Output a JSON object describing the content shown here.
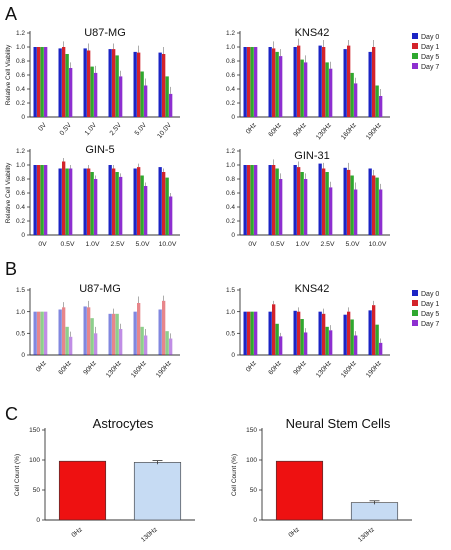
{
  "panel_labels": [
    "A",
    "B",
    "C"
  ],
  "legend": [
    {
      "label": "Day 0",
      "color": "#1c24c4"
    },
    {
      "label": "Day 1",
      "color": "#d3232b"
    },
    {
      "label": "Day 5",
      "color": "#2fa82f"
    },
    {
      "label": "Day 7",
      "color": "#8d2fd0"
    }
  ],
  "chart_data": [
    {
      "type": "bar",
      "title": "U87-MG",
      "ylabel": "Relative Cell Viability",
      "ylim": [
        0,
        1.2
      ],
      "yticks": [
        "0",
        "0.2",
        "0.4",
        "0.6",
        "0.8",
        "1.0",
        "1.2"
      ],
      "categories": [
        "0V",
        "0.5V",
        "1.0V",
        "2.5V",
        "5.0V",
        "10.0V"
      ],
      "series": [
        {
          "name": "Day 0",
          "values": [
            1.0,
            0.98,
            0.98,
            0.97,
            0.93,
            0.92
          ]
        },
        {
          "name": "Day 1",
          "values": [
            1.0,
            1.0,
            0.95,
            0.97,
            0.92,
            0.9
          ]
        },
        {
          "name": "Day 5",
          "values": [
            1.0,
            0.9,
            0.72,
            0.88,
            0.65,
            0.58
          ]
        },
        {
          "name": "Day 7",
          "values": [
            1.0,
            0.7,
            0.63,
            0.58,
            0.45,
            0.33
          ]
        }
      ],
      "errors": [
        0,
        0.08,
        0.1,
        0.08,
        0.1,
        0.1
      ]
    },
    {
      "type": "bar",
      "title": "KNS42",
      "ylim": [
        0,
        1.2
      ],
      "yticks": [
        "0",
        "0.2",
        "0.4",
        "0.6",
        "0.8",
        "1.0",
        "1.2"
      ],
      "categories": [
        "0Hz",
        "60Hz",
        "90Hz",
        "130Hz",
        "160Hz",
        "190Hz"
      ],
      "series": [
        {
          "name": "Day 0",
          "values": [
            1.0,
            1.0,
            1.0,
            1.02,
            0.97,
            0.93
          ]
        },
        {
          "name": "Day 1",
          "values": [
            1.0,
            0.98,
            1.02,
            1.0,
            1.02,
            1.0
          ]
        },
        {
          "name": "Day 5",
          "values": [
            1.0,
            0.93,
            0.82,
            0.78,
            0.63,
            0.45
          ]
        },
        {
          "name": "Day 7",
          "values": [
            1.0,
            0.87,
            0.78,
            0.69,
            0.48,
            0.3
          ]
        }
      ],
      "errors": [
        0,
        0.1,
        0.1,
        0.1,
        0.08,
        0.1
      ]
    },
    {
      "type": "bar",
      "title": "GIN-5",
      "ylabel": "Relative Cell Viability",
      "ylim": [
        0,
        1.2
      ],
      "yticks": [
        "0",
        "0.2",
        "0.4",
        "0.6",
        "0.8",
        "1.0",
        "1.2"
      ],
      "categories": [
        "0V",
        "0.5V",
        "1.0V",
        "2.5V",
        "5.0V",
        "10.0V"
      ],
      "series": [
        {
          "name": "Day 0",
          "values": [
            1.0,
            0.95,
            0.95,
            1.0,
            0.95,
            0.97
          ]
        },
        {
          "name": "Day 1",
          "values": [
            1.0,
            1.05,
            0.95,
            0.95,
            0.97,
            0.9
          ]
        },
        {
          "name": "Day 5",
          "values": [
            1.0,
            0.95,
            0.9,
            0.9,
            0.85,
            0.82
          ]
        },
        {
          "name": "Day 7",
          "values": [
            1.0,
            0.95,
            0.8,
            0.83,
            0.7,
            0.55
          ]
        }
      ],
      "errors": [
        0,
        0.05,
        0.05,
        0.05,
        0.05,
        0.05
      ]
    },
    {
      "type": "bar",
      "title": "GIN-31",
      "ylim": [
        0,
        1.2
      ],
      "yticks": [
        "0",
        "0.2",
        "0.4",
        "0.6",
        "0.8",
        "1.0",
        "1.2"
      ],
      "categories": [
        "0V",
        "0.5V",
        "1.0V",
        "2.5V",
        "5.0V",
        "10.0V"
      ],
      "series": [
        {
          "name": "Day 0",
          "values": [
            1.0,
            1.0,
            1.0,
            1.02,
            0.96,
            0.95
          ]
        },
        {
          "name": "Day 1",
          "values": [
            1.0,
            1.0,
            0.97,
            0.95,
            0.93,
            0.85
          ]
        },
        {
          "name": "Day 5",
          "values": [
            1.0,
            0.95,
            0.9,
            0.9,
            0.85,
            0.82
          ]
        },
        {
          "name": "Day 7",
          "values": [
            1.0,
            0.8,
            0.8,
            0.68,
            0.65,
            0.65
          ]
        }
      ],
      "errors": [
        0,
        0.08,
        0.08,
        0.08,
        0.1,
        0.08
      ]
    },
    {
      "type": "bar",
      "title": "U87-MG",
      "ylim": [
        0,
        1.5
      ],
      "yticks": [
        "0",
        "0.5",
        "1.0",
        "1.5"
      ],
      "categories": [
        "0Hz",
        "60Hz",
        "90Hz",
        "130Hz",
        "160Hz",
        "190Hz"
      ],
      "series": [
        {
          "name": "Day 0",
          "values": [
            1.0,
            1.05,
            1.12,
            0.95,
            1.0,
            1.05
          ]
        },
        {
          "name": "Day 1",
          "values": [
            1.0,
            1.1,
            1.1,
            0.95,
            1.2,
            1.25
          ]
        },
        {
          "name": "Day 5",
          "values": [
            1.0,
            0.65,
            0.85,
            0.95,
            0.65,
            0.55
          ]
        },
        {
          "name": "Day 7",
          "values": [
            1.0,
            0.42,
            0.5,
            0.6,
            0.45,
            0.38
          ]
        }
      ],
      "errors": [
        0,
        0.12,
        0.15,
        0.12,
        0.15,
        0.12
      ]
    },
    {
      "type": "bar",
      "title": "KNS42",
      "ylim": [
        0,
        1.5
      ],
      "yticks": [
        "0",
        "0.5",
        "1.0",
        "1.5"
      ],
      "categories": [
        "0Hz",
        "60Hz",
        "90Hz",
        "130Hz",
        "160Hz",
        "190Hz"
      ],
      "series": [
        {
          "name": "Day 0",
          "values": [
            1.0,
            1.0,
            1.02,
            1.0,
            0.93,
            1.03
          ]
        },
        {
          "name": "Day 1",
          "values": [
            1.0,
            1.17,
            1.0,
            0.95,
            1.0,
            1.15
          ]
        },
        {
          "name": "Day 5",
          "values": [
            1.0,
            0.72,
            0.83,
            0.65,
            0.82,
            0.7
          ]
        },
        {
          "name": "Day 7",
          "values": [
            1.0,
            0.43,
            0.52,
            0.57,
            0.45,
            0.28
          ]
        }
      ],
      "errors": [
        0,
        0.08,
        0.1,
        0.12,
        0.1,
        0.1
      ]
    },
    {
      "type": "bar",
      "title": "Astrocytes",
      "ylabel": "Cell Count (%)",
      "ylim": [
        0,
        150
      ],
      "yticks": [
        "0",
        "50",
        "100",
        "150"
      ],
      "categories": [
        "0Hz",
        "130Hz"
      ],
      "values": [
        98,
        96
      ],
      "colors": [
        "#ee1111",
        "#c6dbf3"
      ],
      "errors": [
        0,
        3
      ]
    },
    {
      "type": "bar",
      "title": "Neural Stem Cells",
      "ylabel": "Cell Count (%)",
      "ylim": [
        0,
        150
      ],
      "yticks": [
        "0",
        "50",
        "100",
        "150"
      ],
      "categories": [
        "0Hz",
        "130Hz"
      ],
      "values": [
        98,
        29
      ],
      "colors": [
        "#ee1111",
        "#c6dbf3"
      ],
      "errors": [
        0,
        3
      ]
    }
  ]
}
